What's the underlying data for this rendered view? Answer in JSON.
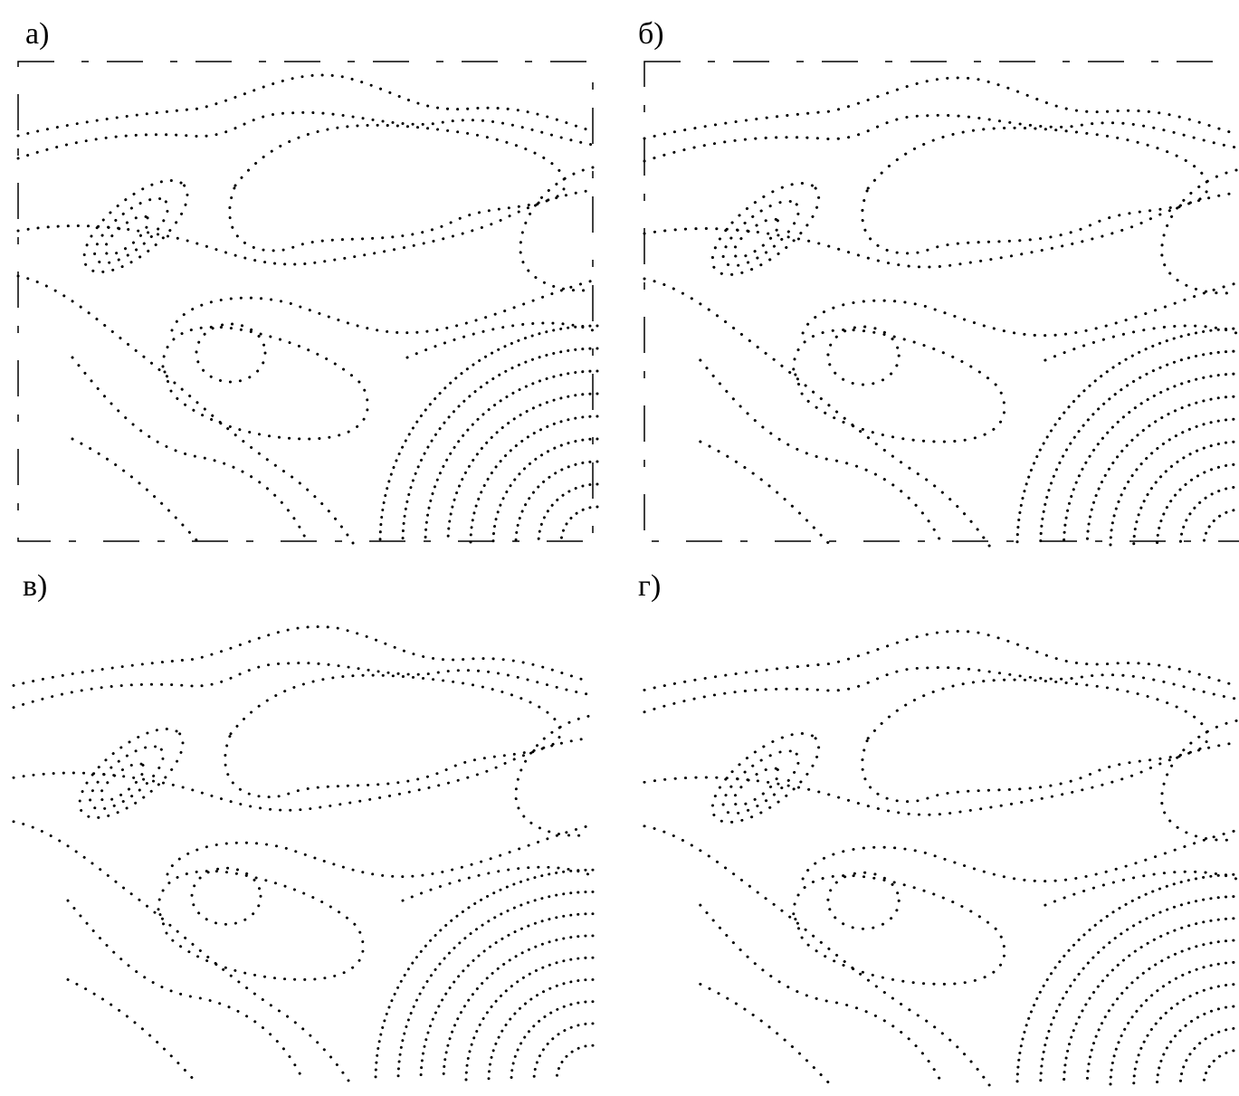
{
  "panels": [
    {
      "label": "а)"
    },
    {
      "label": "б)"
    },
    {
      "label": "в)"
    },
    {
      "label": "г)"
    }
  ]
}
